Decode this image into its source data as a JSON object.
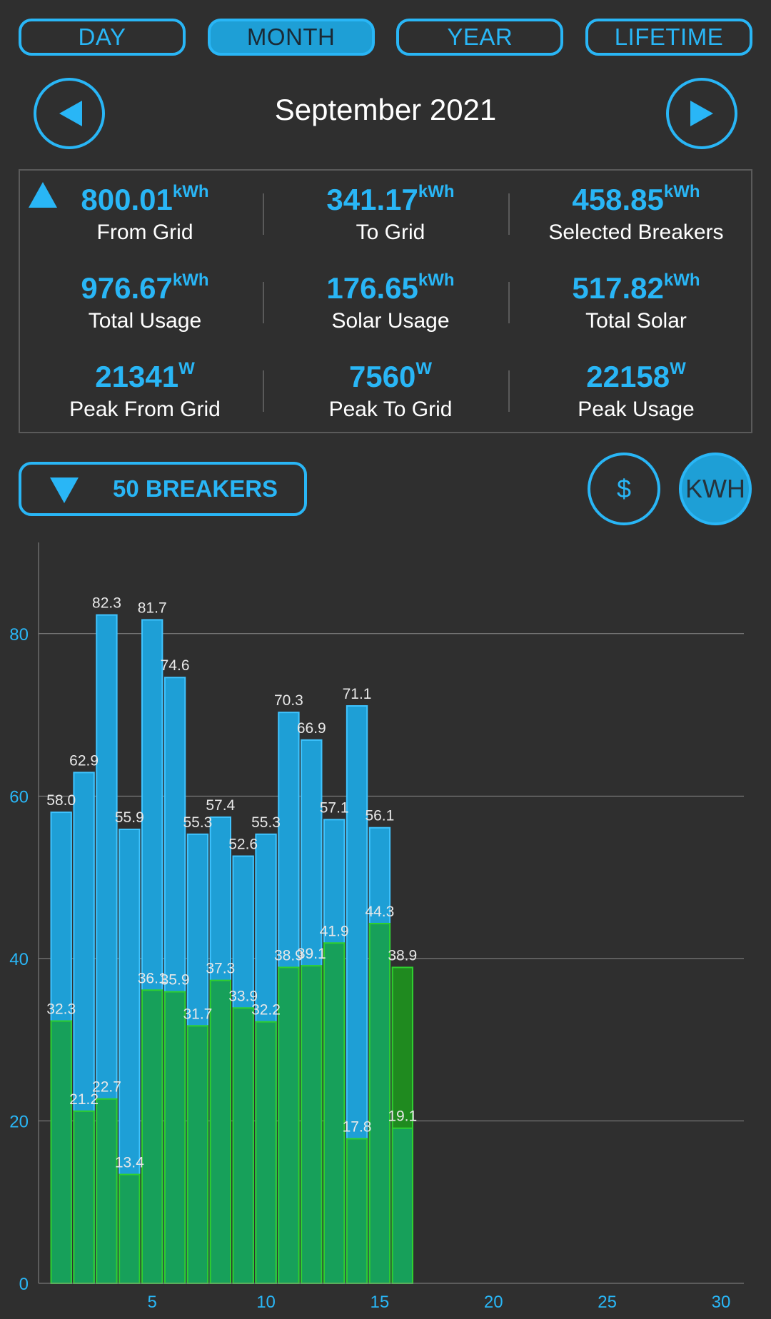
{
  "tabs": [
    {
      "label": "DAY",
      "active": false
    },
    {
      "label": "MONTH",
      "active": true
    },
    {
      "label": "YEAR",
      "active": false
    },
    {
      "label": "LIFETIME",
      "active": false
    }
  ],
  "period": {
    "title": "September 2021"
  },
  "stats": [
    {
      "value": "800.01",
      "unit": "kWh",
      "label": "From Grid"
    },
    {
      "value": "341.17",
      "unit": "kWh",
      "label": "To Grid"
    },
    {
      "value": "458.85",
      "unit": "kWh",
      "label": "Selected Breakers"
    },
    {
      "value": "976.67",
      "unit": "kWh",
      "label": "Total Usage"
    },
    {
      "value": "176.65",
      "unit": "kWh",
      "label": "Solar Usage"
    },
    {
      "value": "517.82",
      "unit": "kWh",
      "label": "Total Solar"
    },
    {
      "value": "21341",
      "unit": "W",
      "label": "Peak From Grid"
    },
    {
      "value": "7560",
      "unit": "W",
      "label": "Peak To Grid"
    },
    {
      "value": "22158",
      "unit": "W",
      "label": "Peak Usage"
    }
  ],
  "breakers": {
    "label": "50 BREAKERS"
  },
  "toggles": {
    "dollar": "$",
    "kwh": "KWH",
    "active": "kwh"
  },
  "colors": {
    "accent": "#29b6f6",
    "usage_bar": "#1e9fd6",
    "solar_bar": "#17a05a",
    "solar_edge": "#2fd02f",
    "solar_dark": "#1f8a1f"
  },
  "chart_data": {
    "type": "bar",
    "x": [
      1,
      2,
      3,
      4,
      5,
      6,
      7,
      8,
      9,
      10,
      11,
      12,
      13,
      14,
      15,
      16
    ],
    "series": [
      {
        "values": [
          58.0,
          62.9,
          82.3,
          55.9,
          81.7,
          74.6,
          55.3,
          57.4,
          52.6,
          55.3,
          70.3,
          66.9,
          57.1,
          71.1,
          56.1,
          38.9
        ]
      },
      {
        "values": [
          32.3,
          21.2,
          22.7,
          13.4,
          36.1,
          35.9,
          31.7,
          37.3,
          33.9,
          32.2,
          38.9,
          39.1,
          41.9,
          17.8,
          44.3,
          19.1
        ]
      }
    ],
    "xticks": [
      5,
      10,
      15,
      20,
      25,
      30
    ],
    "yticks": [
      0,
      20,
      40,
      60,
      80
    ],
    "xlim": [
      0,
      31
    ],
    "ylim": [
      0,
      90
    ],
    "grid": true
  }
}
